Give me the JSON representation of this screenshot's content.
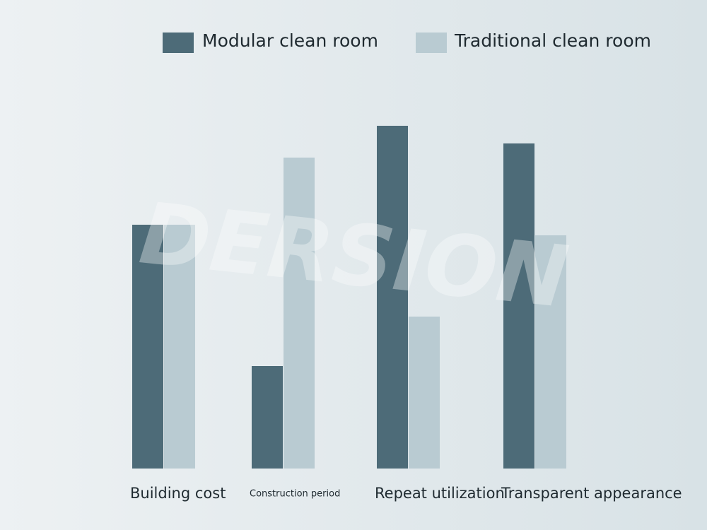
{
  "chart_data": {
    "type": "bar",
    "categories": [
      "Building cost",
      "Construction period",
      "Repeat utilization",
      "Transparent appearance"
    ],
    "series": [
      {
        "name": "Modular clean room",
        "color": "#4d6b78",
        "values": [
          69,
          29,
          97,
          92
        ]
      },
      {
        "name": "Traditional clean room",
        "color": "#b9cbd2",
        "values": [
          69,
          88,
          43,
          66
        ]
      }
    ],
    "ylim": [
      0,
      100
    ],
    "watermark": "DERSION"
  }
}
